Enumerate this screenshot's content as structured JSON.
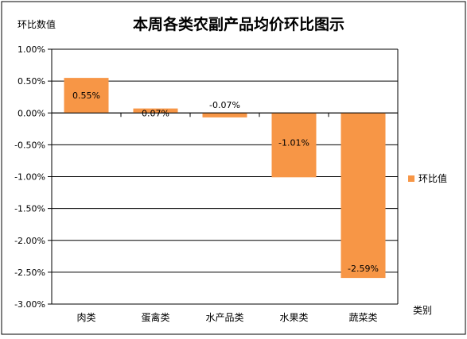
{
  "chart_data": {
    "type": "bar",
    "title": "本周各类农副产品均价环比图示",
    "ylabel": "环比数值",
    "xlabel": "类别",
    "categories": [
      "肉类",
      "蛋禽类",
      "水产品类",
      "水果类",
      "蔬菜类"
    ],
    "series": [
      {
        "name": "环比值",
        "values": [
          0.55,
          0.07,
          -0.07,
          -1.01,
          -2.59
        ],
        "labels": [
          "0.55%",
          "0.07%",
          "-0.07%",
          "-1.01%",
          "-2.59%"
        ],
        "color": "#F79646"
      }
    ],
    "ylim": [
      -3.0,
      1.0
    ],
    "yticks": [
      1.0,
      0.5,
      0.0,
      -0.5,
      -1.0,
      -1.5,
      -2.0,
      -2.5,
      -3.0
    ],
    "ytick_labels": [
      "1.00%",
      "0.50%",
      "0.00%",
      "-0.50%",
      "-1.00%",
      "-1.50%",
      "-2.00%",
      "-2.50%",
      "-3.00%"
    ],
    "grid": true,
    "legend_position": "right"
  }
}
